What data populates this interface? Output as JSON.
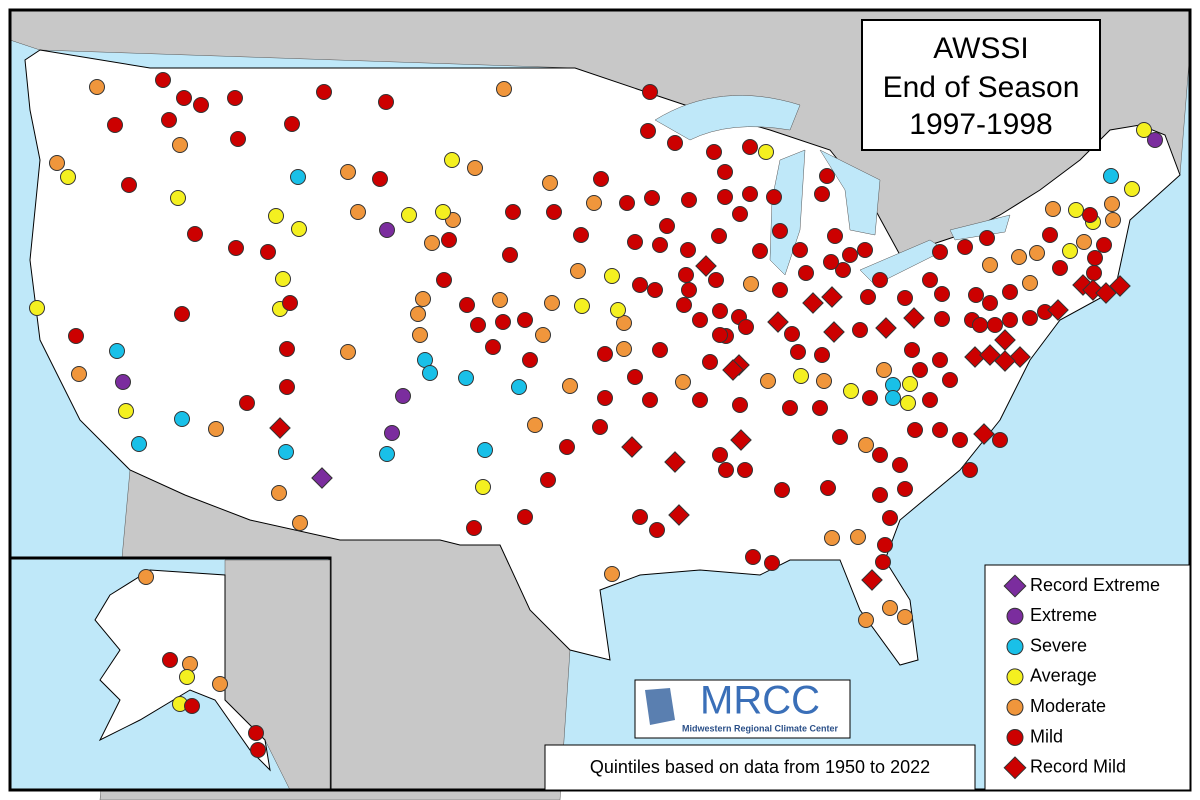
{
  "title": {
    "lines": [
      "AWSSI",
      "End of Season",
      "1997-1998"
    ]
  },
  "legend": [
    {
      "label": "Record Extreme",
      "color": "#7b2d9e",
      "shape": "diamond"
    },
    {
      "label": "Extreme",
      "color": "#7b2d9e",
      "shape": "circle"
    },
    {
      "label": "Severe",
      "color": "#19c0e8",
      "shape": "circle"
    },
    {
      "label": "Average",
      "color": "#f4f020",
      "shape": "circle"
    },
    {
      "label": "Moderate",
      "color": "#f0963c",
      "shape": "circle"
    },
    {
      "label": "Mild",
      "color": "#cc0000",
      "shape": "circle"
    },
    {
      "label": "Record Mild",
      "color": "#cc0000",
      "shape": "diamond"
    }
  ],
  "footnote": "Quintiles based on data from 1950 to 2022",
  "logo": {
    "name": "MRCC",
    "full": "Midwestern Regional Climate Center"
  }
}
